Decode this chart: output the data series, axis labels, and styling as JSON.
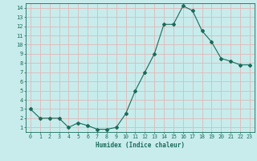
{
  "x": [
    0,
    1,
    2,
    3,
    4,
    5,
    6,
    7,
    8,
    9,
    10,
    11,
    12,
    13,
    14,
    15,
    16,
    17,
    18,
    19,
    20,
    21,
    22,
    23
  ],
  "y": [
    3.0,
    2.0,
    2.0,
    2.0,
    1.0,
    1.5,
    1.2,
    0.8,
    0.8,
    1.0,
    2.5,
    5.0,
    7.0,
    9.0,
    12.2,
    12.2,
    14.2,
    13.7,
    11.5,
    10.3,
    8.5,
    8.2,
    7.8,
    7.8
  ],
  "line_color": "#1a6b5a",
  "marker": "D",
  "marker_size": 2,
  "bg_color": "#c8ecec",
  "grid_color": "#e0b8b8",
  "xlabel": "Humidex (Indice chaleur)",
  "xlim": [
    -0.5,
    23.5
  ],
  "ylim": [
    0.5,
    14.5
  ],
  "yticks": [
    1,
    2,
    3,
    4,
    5,
    6,
    7,
    8,
    9,
    10,
    11,
    12,
    13,
    14
  ],
  "xticks": [
    0,
    1,
    2,
    3,
    4,
    5,
    6,
    7,
    8,
    9,
    10,
    11,
    12,
    13,
    14,
    15,
    16,
    17,
    18,
    19,
    20,
    21,
    22,
    23
  ]
}
